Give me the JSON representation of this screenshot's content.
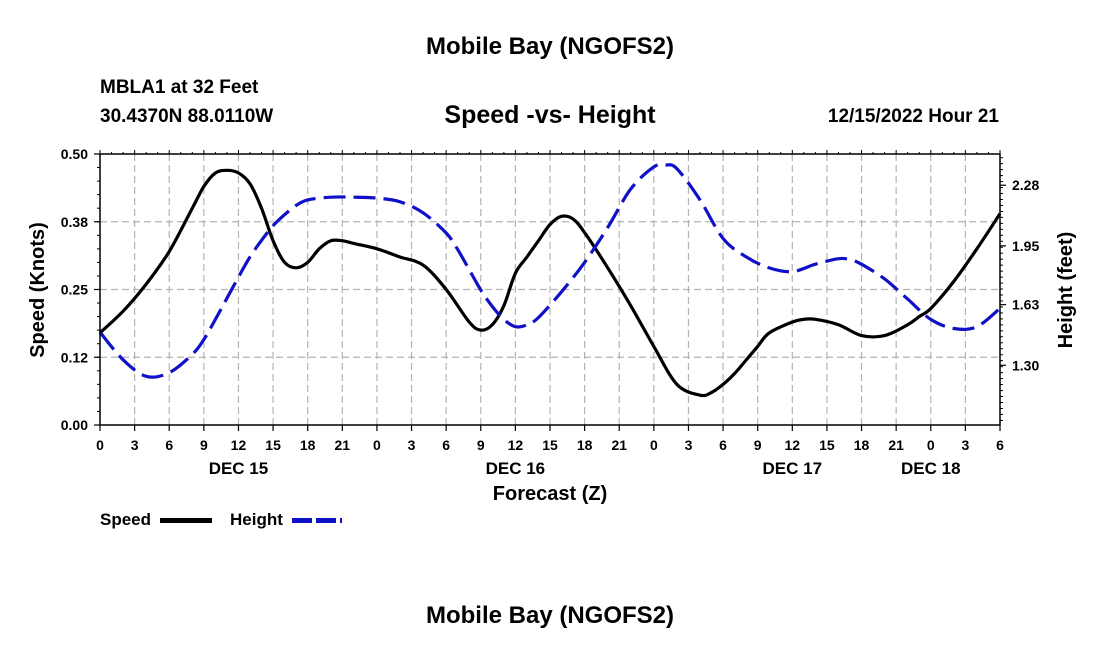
{
  "page": {
    "top_title": "Mobile Bay (NGOFS2)",
    "bottom_title": "Mobile Bay (NGOFS2)",
    "station_line": "MBLA1 at 32 Feet",
    "coords_line": "30.4370N  88.0110W",
    "chart_title": "Speed -vs- Height",
    "datetime": "12/15/2022 Hour 21"
  },
  "colors": {
    "speed": "#000000",
    "height": "#1010c8",
    "grid": "#b4b4b4"
  },
  "chart_data": {
    "type": "line",
    "title": "Speed -vs- Height",
    "xlabel": "Forecast (Z)",
    "ylabel": "Speed (Knots)",
    "y2label": "Height (feet)",
    "x_range": [
      0,
      78
    ],
    "y_range": [
      0,
      0.5
    ],
    "y2_range": [
      0.975,
      2.45
    ],
    "y_ticks": [
      "0.00",
      "0.12",
      "0.25",
      "0.38",
      "0.50"
    ],
    "y_tick_values": [
      0,
      0.125,
      0.25,
      0.375,
      0.5
    ],
    "y2_ticks": [
      "1.30",
      "1.63",
      "1.95",
      "2.28"
    ],
    "y2_tick_values": [
      1.3,
      1.63,
      1.95,
      2.28
    ],
    "x_ticks": [
      "0",
      "3",
      "6",
      "9",
      "12",
      "15",
      "18",
      "21",
      "0",
      "3",
      "6",
      "9",
      "12",
      "15",
      "18",
      "21",
      "0",
      "3",
      "6",
      "9",
      "12",
      "15",
      "18",
      "21",
      "0",
      "3",
      "6"
    ],
    "day_labels": [
      {
        "label": "DEC 15",
        "hour": 12
      },
      {
        "label": "DEC 16",
        "hour": 36
      },
      {
        "label": "DEC 17",
        "hour": 60
      },
      {
        "label": "DEC 18",
        "hour": 72
      }
    ],
    "series": [
      {
        "name": "Speed",
        "axis": "left",
        "style": "solid",
        "x": [
          0,
          2,
          4,
          6,
          8,
          9,
          10,
          11,
          12,
          13,
          14,
          15,
          16,
          17,
          18,
          19,
          20,
          21,
          22,
          24,
          26,
          28,
          30,
          32,
          33,
          34,
          35,
          36,
          37,
          38,
          39,
          40,
          41,
          42,
          44,
          46,
          48,
          50,
          52,
          53,
          54,
          55,
          56,
          57,
          58,
          60,
          61,
          62,
          64,
          66,
          68,
          70,
          71,
          72,
          74,
          76,
          78
        ],
        "y": [
          0.17,
          0.21,
          0.26,
          0.32,
          0.4,
          0.44,
          0.465,
          0.47,
          0.465,
          0.445,
          0.4,
          0.34,
          0.3,
          0.29,
          0.3,
          0.325,
          0.34,
          0.34,
          0.335,
          0.325,
          0.31,
          0.295,
          0.25,
          0.19,
          0.175,
          0.185,
          0.22,
          0.28,
          0.31,
          0.34,
          0.37,
          0.385,
          0.38,
          0.355,
          0.29,
          0.22,
          0.145,
          0.075,
          0.055,
          0.06,
          0.075,
          0.095,
          0.12,
          0.145,
          0.17,
          0.19,
          0.195,
          0.195,
          0.185,
          0.165,
          0.165,
          0.185,
          0.2,
          0.215,
          0.265,
          0.325,
          0.39
        ]
      },
      {
        "name": "Height",
        "axis": "right",
        "style": "dashed",
        "x": [
          0,
          2,
          4,
          6,
          8,
          9,
          10,
          12,
          13,
          14,
          15,
          16,
          17,
          18,
          20,
          22,
          24,
          26,
          28,
          30,
          31,
          32,
          33,
          34,
          35,
          36,
          37,
          38,
          40,
          42,
          44,
          46,
          48,
          49,
          50,
          52,
          54,
          56,
          58,
          60,
          62,
          64,
          65,
          66,
          68,
          70,
          72,
          74,
          76,
          78
        ],
        "y": [
          1.48,
          1.33,
          1.24,
          1.26,
          1.36,
          1.44,
          1.55,
          1.78,
          1.89,
          1.98,
          2.06,
          2.12,
          2.17,
          2.2,
          2.215,
          2.215,
          2.21,
          2.19,
          2.13,
          2.02,
          1.93,
          1.82,
          1.71,
          1.62,
          1.55,
          1.51,
          1.52,
          1.56,
          1.7,
          1.86,
          2.05,
          2.26,
          2.38,
          2.39,
          2.37,
          2.2,
          1.99,
          1.89,
          1.83,
          1.81,
          1.85,
          1.88,
          1.875,
          1.85,
          1.77,
          1.66,
          1.55,
          1.5,
          1.51,
          1.61
        ]
      }
    ],
    "legend": [
      {
        "label": "Speed",
        "style": "solid"
      },
      {
        "label": "Height",
        "style": "dashed"
      }
    ],
    "legend_placement": "bottom-left"
  }
}
